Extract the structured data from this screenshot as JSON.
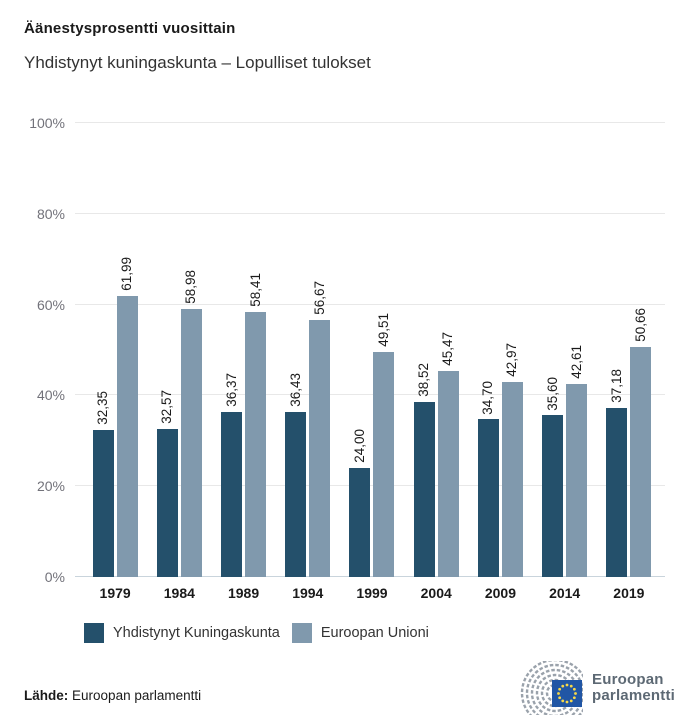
{
  "title": "Äänestysprosentti vuosittain",
  "subtitle": "Yhdistynyt kuningaskunta – Lopulliset tulokset",
  "chart_data": {
    "type": "bar",
    "categories": [
      "1979",
      "1984",
      "1989",
      "1994",
      "1999",
      "2004",
      "2009",
      "2014",
      "2019"
    ],
    "series": [
      {
        "name": "Yhdistynyt Kuningaskunta",
        "color": "#24506b",
        "values": [
          32.35,
          32.57,
          36.37,
          36.43,
          24.0,
          38.52,
          34.7,
          35.6,
          37.18
        ]
      },
      {
        "name": "Euroopan Unioni",
        "color": "#8099ad",
        "values": [
          61.99,
          58.98,
          58.41,
          56.67,
          49.51,
          45.47,
          42.97,
          42.61,
          50.66
        ]
      }
    ],
    "value_label_decimal_separator": ",",
    "xlabel": "",
    "ylabel": "",
    "ylim": [
      0,
      100
    ],
    "yticks": [
      "0%",
      "20%",
      "40%",
      "60%",
      "80%",
      "100%"
    ],
    "grid": true,
    "legend_position": "bottom"
  },
  "footer": {
    "source_label": "Lähde:",
    "source_value": "Euroopan parlamentti"
  },
  "logo": {
    "line1": "Euroopan",
    "line2": "parlamentti",
    "flag_blue": "#2156a5",
    "star_yellow": "#f8d948",
    "arc_gray": "#9aa2ab",
    "text_color": "#5d6974"
  }
}
